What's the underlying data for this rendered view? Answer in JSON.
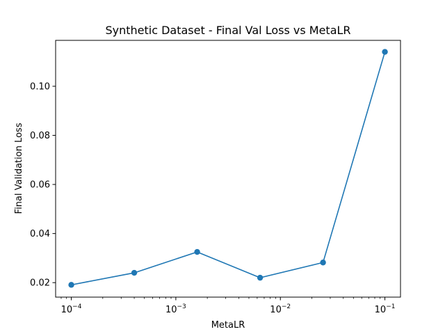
{
  "chart_data": {
    "type": "line",
    "title": "Synthetic Dataset - Final Val Loss vs MetaLR",
    "xlabel": "MetaLR",
    "ylabel": "Final Validation Loss",
    "xscale": "log",
    "xlim": [
      7.08e-05,
      0.141
    ],
    "ylim": [
      0.0141,
      0.1187
    ],
    "grid": false,
    "series": [
      {
        "color": "#1f77b4",
        "marker": "circle",
        "x": [
          0.0001,
          0.0004,
          0.0016,
          0.0064,
          0.0256,
          0.1
        ],
        "y": [
          0.0191,
          0.024,
          0.0325,
          0.022,
          0.0282,
          0.114
        ]
      }
    ],
    "x_ticks": [
      {
        "value": 0.0001,
        "base": "10",
        "exp": "−4"
      },
      {
        "value": 0.001,
        "base": "10",
        "exp": "−3"
      },
      {
        "value": 0.01,
        "base": "10",
        "exp": "−2"
      },
      {
        "value": 0.1,
        "base": "10",
        "exp": "−1"
      }
    ],
    "y_ticks": [
      {
        "value": 0.02,
        "label": "0.02"
      },
      {
        "value": 0.04,
        "label": "0.04"
      },
      {
        "value": 0.06,
        "label": "0.06"
      },
      {
        "value": 0.08,
        "label": "0.08"
      },
      {
        "value": 0.1,
        "label": "0.10"
      }
    ]
  }
}
